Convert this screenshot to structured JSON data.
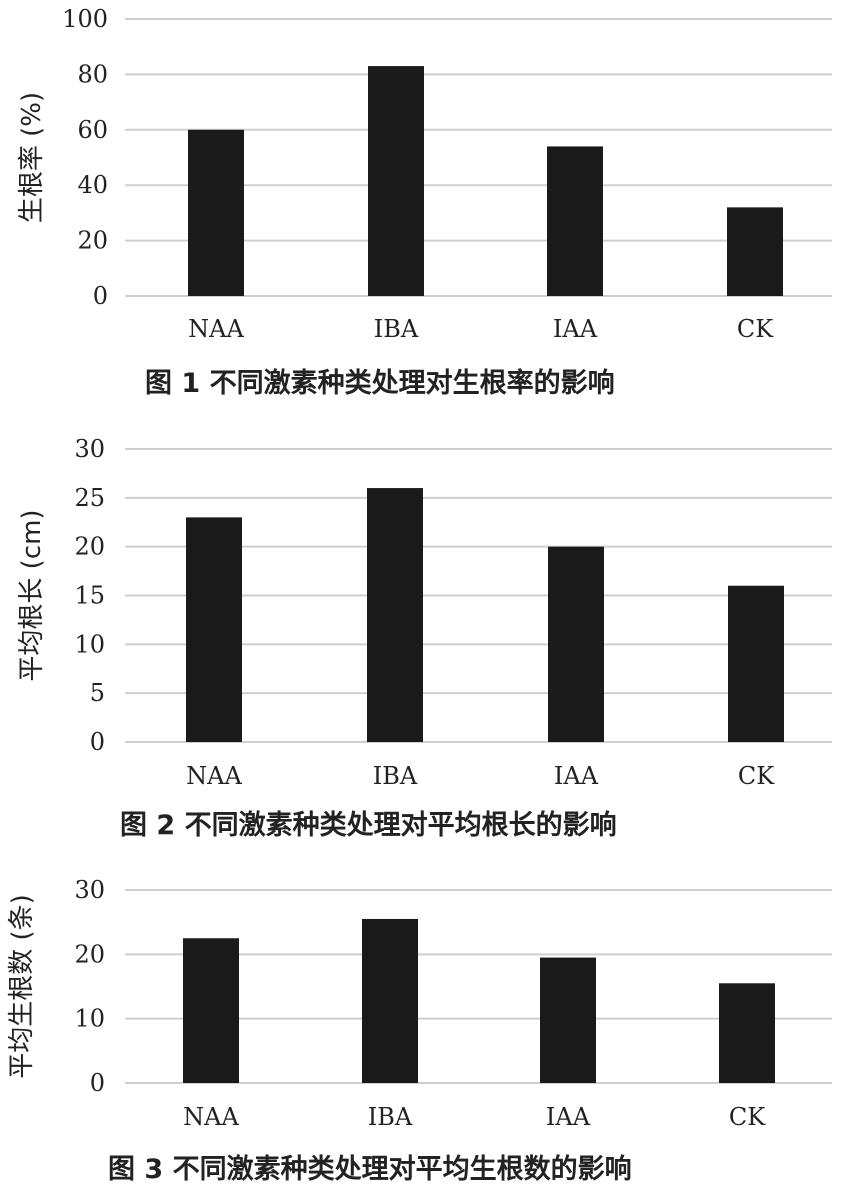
{
  "chart_data": [
    {
      "type": "bar",
      "caption": "图 1  不同激素种类处理对生根率的影响",
      "ylabel": "生根率 (%)",
      "categories": [
        "NAA",
        "IBA",
        "IAA",
        "CK"
      ],
      "values": [
        60,
        83,
        54,
        32
      ],
      "ylim": [
        0,
        100
      ],
      "yticks": [
        0,
        20,
        40,
        60,
        80,
        100
      ],
      "grid": true
    },
    {
      "type": "bar",
      "caption": "图 2  不同激素种类处理对平均根长的影响",
      "ylabel": "平均根长 (cm)",
      "categories": [
        "NAA",
        "IBA",
        "IAA",
        "CK"
      ],
      "values": [
        23,
        26,
        20,
        16
      ],
      "ylim": [
        0,
        30
      ],
      "yticks": [
        0,
        5,
        10,
        15,
        20,
        25,
        30
      ],
      "grid": true
    },
    {
      "type": "bar",
      "caption": "图 3  不同激素种类处理对平均生根数的影响",
      "ylabel": "平均生根数 (条)",
      "categories": [
        "NAA",
        "IBA",
        "IAA",
        "CK"
      ],
      "values": [
        22.5,
        25.5,
        19.5,
        15.5
      ],
      "ylim": [
        0,
        30
      ],
      "yticks": [
        0,
        10,
        20,
        30
      ],
      "grid": true
    }
  ]
}
